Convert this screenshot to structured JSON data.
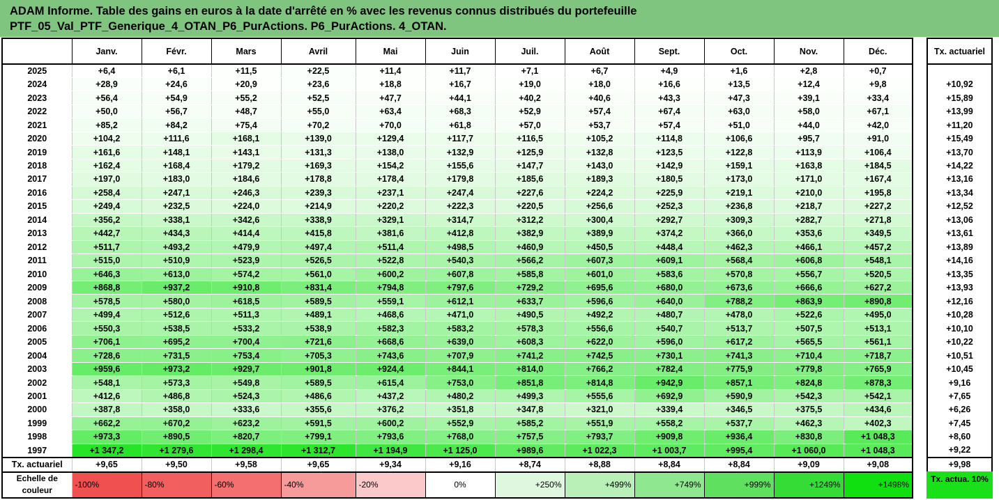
{
  "title_line1": "ADAM Informe. Table des gains en euros à la date d'arrêté en % avec les revenus connus distribués du portefeuille",
  "title_line2": "PTF_05_Val_PTF_Generique_4_OTAN_P6_PurActions. P6_PurActions. 4_OTAN.",
  "side_header": "Tx. actuariel",
  "side_legend": "Tx. actua. 10%",
  "legend_label": "Echelle de couleur",
  "legend_scale": [
    {
      "label": "-100%",
      "color": "#f05050",
      "align": "neg"
    },
    {
      "label": "-80%",
      "color": "#f25f5f",
      "align": "neg"
    },
    {
      "label": "-60%",
      "color": "#f46f6f",
      "align": "neg"
    },
    {
      "label": "-40%",
      "color": "#f79a9a",
      "align": "neg"
    },
    {
      "label": "-20%",
      "color": "#fbc9c9",
      "align": "neg"
    },
    {
      "label": "0%",
      "color": "#ffffff",
      "align": "mid"
    },
    {
      "label": "+250%",
      "color": "#def7de",
      "align": "pos"
    },
    {
      "label": "+499%",
      "color": "#b8f0b8",
      "align": "pos"
    },
    {
      "label": "+749%",
      "color": "#8fe88f",
      "align": "pos"
    },
    {
      "label": "+999%",
      "color": "#5fe05f",
      "align": "pos"
    },
    {
      "label": "+1249%",
      "color": "#36dc36",
      "align": "pos"
    },
    {
      "label": "+1498%",
      "color": "#10e010",
      "align": "pos"
    }
  ],
  "colors": {
    "title_bg": "#7fc47f",
    "side_legend_bg": "#19e019"
  },
  "chart_data": {
    "type": "table",
    "columns": [
      "Janv.",
      "Févr.",
      "Mars",
      "Avril",
      "Mai",
      "Juin",
      "Juil.",
      "Août",
      "Sept.",
      "Oct.",
      "Nov.",
      "Déc."
    ],
    "rows": [
      {
        "year": "2025",
        "values": [
          "+6,4",
          "+6,1",
          "+11,5",
          "+22,5",
          "+11,4",
          "+11,7",
          "+7,1",
          "+6,7",
          "+4,9",
          "+1,6",
          "+2,8",
          "+0,7"
        ],
        "tx": ""
      },
      {
        "year": "2024",
        "values": [
          "+28,9",
          "+24,6",
          "+20,9",
          "+23,6",
          "+18,8",
          "+16,7",
          "+19,0",
          "+18,0",
          "+16,6",
          "+13,5",
          "+12,4",
          "+9,8"
        ],
        "tx": "+10,92"
      },
      {
        "year": "2023",
        "values": [
          "+56,4",
          "+54,9",
          "+55,2",
          "+52,5",
          "+47,7",
          "+44,1",
          "+40,2",
          "+40,6",
          "+43,3",
          "+47,3",
          "+39,1",
          "+33,4"
        ],
        "tx": "+15,89"
      },
      {
        "year": "2022",
        "values": [
          "+50,0",
          "+56,7",
          "+48,7",
          "+55,0",
          "+63,4",
          "+68,3",
          "+52,9",
          "+57,4",
          "+67,4",
          "+63,0",
          "+58,0",
          "+67,1"
        ],
        "tx": "+13,99"
      },
      {
        "year": "2021",
        "values": [
          "+85,2",
          "+84,2",
          "+75,4",
          "+70,2",
          "+70,0",
          "+61,8",
          "+57,0",
          "+53,7",
          "+57,4",
          "+51,0",
          "+44,0",
          "+42,0"
        ],
        "tx": "+11,20"
      },
      {
        "year": "2020",
        "values": [
          "+104,2",
          "+111,6",
          "+168,1",
          "+139,0",
          "+129,4",
          "+117,7",
          "+116,5",
          "+105,2",
          "+114,8",
          "+106,6",
          "+95,7",
          "+91,0"
        ],
        "tx": "+15,49"
      },
      {
        "year": "2019",
        "values": [
          "+161,6",
          "+148,1",
          "+143,1",
          "+131,3",
          "+138,0",
          "+132,9",
          "+125,9",
          "+132,8",
          "+123,5",
          "+122,8",
          "+113,9",
          "+106,4"
        ],
        "tx": "+13,70"
      },
      {
        "year": "2018",
        "values": [
          "+162,4",
          "+168,4",
          "+179,2",
          "+169,3",
          "+154,2",
          "+155,6",
          "+147,7",
          "+143,0",
          "+142,9",
          "+159,1",
          "+163,8",
          "+184,5"
        ],
        "tx": "+14,22"
      },
      {
        "year": "2017",
        "values": [
          "+197,0",
          "+183,0",
          "+184,6",
          "+178,8",
          "+178,4",
          "+179,8",
          "+185,6",
          "+189,3",
          "+180,5",
          "+173,0",
          "+171,0",
          "+167,4"
        ],
        "tx": "+13,16"
      },
      {
        "year": "2016",
        "values": [
          "+258,4",
          "+247,1",
          "+246,3",
          "+239,3",
          "+237,1",
          "+247,4",
          "+227,6",
          "+224,2",
          "+225,9",
          "+219,1",
          "+210,0",
          "+195,8"
        ],
        "tx": "+13,34"
      },
      {
        "year": "2015",
        "values": [
          "+249,4",
          "+232,5",
          "+224,0",
          "+214,9",
          "+220,2",
          "+222,3",
          "+220,5",
          "+256,6",
          "+252,3",
          "+236,8",
          "+218,7",
          "+227,2"
        ],
        "tx": "+12,52"
      },
      {
        "year": "2014",
        "values": [
          "+356,2",
          "+338,1",
          "+342,6",
          "+338,9",
          "+329,1",
          "+314,7",
          "+312,2",
          "+300,4",
          "+292,7",
          "+309,3",
          "+282,7",
          "+271,8"
        ],
        "tx": "+13,06"
      },
      {
        "year": "2013",
        "values": [
          "+442,7",
          "+434,3",
          "+414,4",
          "+415,8",
          "+381,6",
          "+412,8",
          "+382,9",
          "+389,9",
          "+374,2",
          "+366,0",
          "+353,6",
          "+349,5"
        ],
        "tx": "+13,61"
      },
      {
        "year": "2012",
        "values": [
          "+511,7",
          "+493,2",
          "+479,9",
          "+497,4",
          "+511,4",
          "+498,5",
          "+460,9",
          "+450,5",
          "+448,4",
          "+462,3",
          "+466,1",
          "+457,2"
        ],
        "tx": "+13,89"
      },
      {
        "year": "2011",
        "values": [
          "+515,0",
          "+510,9",
          "+523,9",
          "+526,5",
          "+522,8",
          "+540,3",
          "+566,2",
          "+607,3",
          "+609,1",
          "+568,4",
          "+606,8",
          "+548,1"
        ],
        "tx": "+14,16"
      },
      {
        "year": "2010",
        "values": [
          "+646,3",
          "+613,0",
          "+574,2",
          "+561,0",
          "+600,2",
          "+607,8",
          "+585,8",
          "+601,0",
          "+583,6",
          "+570,8",
          "+556,7",
          "+520,5"
        ],
        "tx": "+13,35"
      },
      {
        "year": "2009",
        "values": [
          "+868,8",
          "+937,2",
          "+910,8",
          "+831,4",
          "+794,8",
          "+797,6",
          "+729,2",
          "+695,6",
          "+680,0",
          "+673,6",
          "+666,6",
          "+627,2"
        ],
        "tx": "+13,93"
      },
      {
        "year": "2008",
        "values": [
          "+578,5",
          "+580,0",
          "+618,5",
          "+589,5",
          "+559,1",
          "+612,1",
          "+633,7",
          "+596,6",
          "+640,0",
          "+788,2",
          "+863,9",
          "+890,8"
        ],
        "tx": "+12,16"
      },
      {
        "year": "2007",
        "values": [
          "+499,4",
          "+512,6",
          "+511,3",
          "+489,1",
          "+468,6",
          "+471,0",
          "+490,5",
          "+492,2",
          "+480,7",
          "+478,0",
          "+522,6",
          "+495,0"
        ],
        "tx": "+10,28"
      },
      {
        "year": "2006",
        "values": [
          "+550,3",
          "+538,5",
          "+533,2",
          "+538,9",
          "+582,3",
          "+583,2",
          "+578,3",
          "+556,6",
          "+540,7",
          "+513,7",
          "+507,5",
          "+513,1"
        ],
        "tx": "+10,10"
      },
      {
        "year": "2005",
        "values": [
          "+706,1",
          "+695,2",
          "+700,4",
          "+721,6",
          "+668,6",
          "+639,0",
          "+608,3",
          "+622,0",
          "+596,0",
          "+617,2",
          "+565,5",
          "+561,1"
        ],
        "tx": "+10,22"
      },
      {
        "year": "2004",
        "values": [
          "+728,6",
          "+731,5",
          "+753,4",
          "+705,3",
          "+743,6",
          "+707,9",
          "+741,2",
          "+742,5",
          "+730,1",
          "+741,3",
          "+710,4",
          "+718,7"
        ],
        "tx": "+10,51"
      },
      {
        "year": "2003",
        "values": [
          "+959,6",
          "+973,2",
          "+929,7",
          "+901,8",
          "+924,4",
          "+844,1",
          "+814,0",
          "+766,2",
          "+782,4",
          "+775,9",
          "+779,8",
          "+765,9"
        ],
        "tx": "+10,45"
      },
      {
        "year": "2002",
        "values": [
          "+548,1",
          "+573,3",
          "+549,8",
          "+589,5",
          "+615,4",
          "+753,0",
          "+851,8",
          "+814,8",
          "+942,9",
          "+857,1",
          "+824,8",
          "+878,3"
        ],
        "tx": "+9,16"
      },
      {
        "year": "2001",
        "values": [
          "+412,6",
          "+486,8",
          "+524,3",
          "+486,6",
          "+437,2",
          "+480,2",
          "+499,3",
          "+555,6",
          "+692,9",
          "+590,9",
          "+542,3",
          "+542,1"
        ],
        "tx": "+7,65"
      },
      {
        "year": "2000",
        "values": [
          "+387,8",
          "+358,0",
          "+333,6",
          "+355,6",
          "+376,2",
          "+351,8",
          "+347,8",
          "+321,0",
          "+339,4",
          "+346,5",
          "+375,5",
          "+434,6"
        ],
        "tx": "+6,26"
      },
      {
        "year": "1999",
        "values": [
          "+662,2",
          "+670,2",
          "+623,2",
          "+591,5",
          "+600,2",
          "+552,9",
          "+585,2",
          "+551,9",
          "+558,2",
          "+537,7",
          "+462,3",
          "+402,3"
        ],
        "tx": "+7,45"
      },
      {
        "year": "1998",
        "values": [
          "+973,3",
          "+890,5",
          "+820,7",
          "+799,1",
          "+793,6",
          "+768,0",
          "+757,5",
          "+793,7",
          "+909,8",
          "+936,4",
          "+830,8",
          "+1 048,3"
        ],
        "tx": "+8,60"
      },
      {
        "year": "1997",
        "values": [
          "+1 347,2",
          "+1 279,6",
          "+1 298,4",
          "+1 312,7",
          "+1 194,9",
          "+1 125,0",
          "+989,6",
          "+1 022,3",
          "+1 003,7",
          "+995,4",
          "+1 060,0",
          "+1 048,3"
        ],
        "tx": "+9,22"
      }
    ],
    "avg_row": {
      "label": "Tx. actuariel",
      "values": [
        "+9,65",
        "+9,50",
        "+9,58",
        "+9,65",
        "+9,34",
        "+9,16",
        "+8,74",
        "+8,88",
        "+8,84",
        "+8,84",
        "+9,09",
        "+9,08"
      ],
      "tx": "+9,98"
    }
  }
}
